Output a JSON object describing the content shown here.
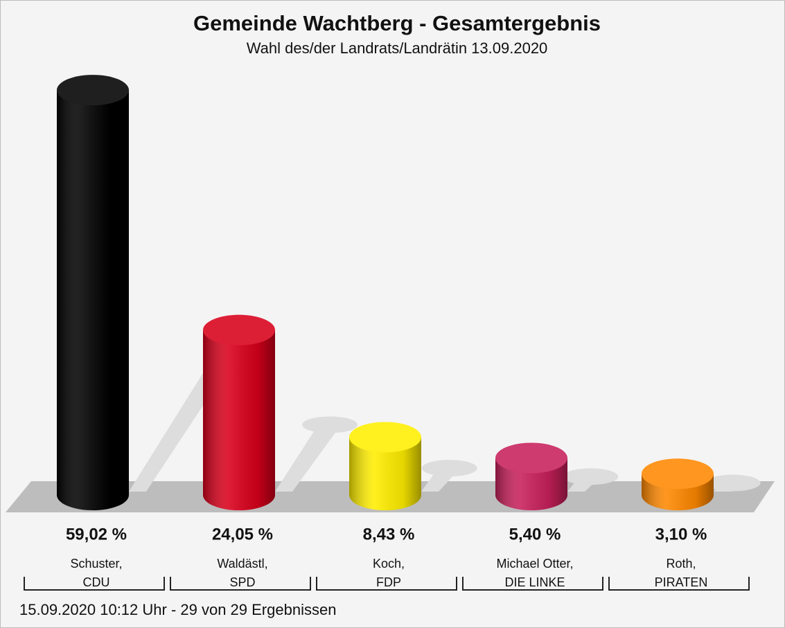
{
  "chart_data": {
    "type": "bar",
    "title": "Gemeinde Wachtberg - Gesamtergebnis",
    "subtitle": "Wahl des/der Landrats/Landrätin 13.09.2020",
    "categories": [
      [
        "Schuster,",
        "CDU"
      ],
      [
        "Waldästl,",
        "SPD"
      ],
      [
        "Koch,",
        "FDP"
      ],
      [
        "Michael Otter,",
        "DIE LINKE"
      ],
      [
        "Roth,",
        "PIRATEN"
      ]
    ],
    "values": [
      59.02,
      24.05,
      8.43,
      5.4,
      3.1
    ],
    "value_labels": [
      "59,02 %",
      "24,05 %",
      "8,43 %",
      "5,40 %",
      "3,10 %"
    ],
    "colors": [
      "#000000",
      "#d9001b",
      "#ffee00",
      "#c8205a",
      "#ff8800"
    ],
    "footer": "15.09.2020 10:12 Uhr - 29 von 29 Ergebnissen"
  }
}
